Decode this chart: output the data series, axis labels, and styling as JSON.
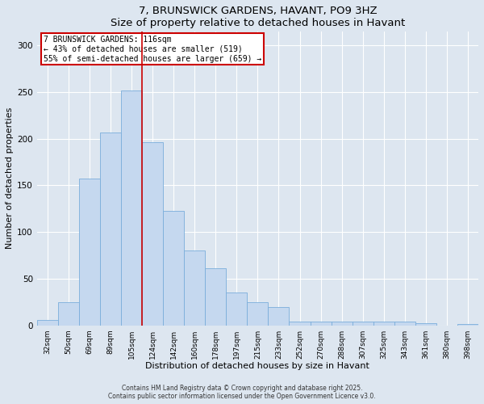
{
  "title": "7, BRUNSWICK GARDENS, HAVANT, PO9 3HZ",
  "subtitle": "Size of property relative to detached houses in Havant",
  "xlabel": "Distribution of detached houses by size in Havant",
  "ylabel": "Number of detached properties",
  "categories": [
    "32sqm",
    "50sqm",
    "69sqm",
    "89sqm",
    "105sqm",
    "124sqm",
    "142sqm",
    "160sqm",
    "178sqm",
    "197sqm",
    "215sqm",
    "233sqm",
    "252sqm",
    "270sqm",
    "288sqm",
    "307sqm",
    "325sqm",
    "343sqm",
    "361sqm",
    "380sqm",
    "398sqm"
  ],
  "values": [
    6,
    25,
    157,
    207,
    252,
    196,
    123,
    80,
    61,
    35,
    25,
    20,
    4,
    4,
    4,
    4,
    4,
    4,
    2,
    0,
    1
  ],
  "bar_color": "#c5d8ef",
  "bar_edge_color": "#7aaedb",
  "red_line_x": 4.5,
  "annotation_title": "7 BRUNSWICK GARDENS: 116sqm",
  "annotation_line1": "← 43% of detached houses are smaller (519)",
  "annotation_line2": "55% of semi-detached houses are larger (659) →",
  "annotation_box_color": "#ffffff",
  "annotation_box_edge": "#cc0000",
  "red_line_color": "#cc0000",
  "background_color": "#dde6f0",
  "ylim": [
    0,
    315
  ],
  "yticks": [
    0,
    50,
    100,
    150,
    200,
    250,
    300
  ],
  "footer1": "Contains HM Land Registry data © Crown copyright and database right 2025.",
  "footer2": "Contains public sector information licensed under the Open Government Licence v3.0."
}
